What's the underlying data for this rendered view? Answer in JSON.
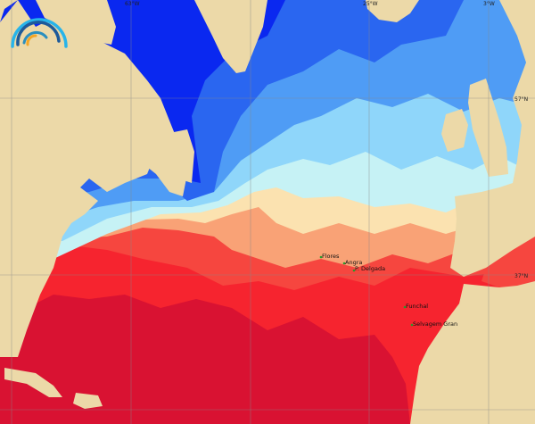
{
  "map": {
    "graticule": {
      "longitudes": [
        "63°W",
        "25°W",
        "3°W"
      ],
      "latitudes": [
        "57°N",
        "37°N"
      ]
    },
    "places": [
      {
        "name": "Flores"
      },
      {
        "name": "Angra"
      },
      {
        "name": "P. Delgada"
      },
      {
        "name": "Funchal"
      },
      {
        "name": "Selvagem Gran"
      }
    ],
    "logo_icon": "rainbow-arc-logo",
    "colors": {
      "land": "#ecd9a8",
      "deep_cold": "#0a28f0",
      "cold": "#2a66f0",
      "cool": "#4f9cf5",
      "mild": "#8fd6fa",
      "pale": "#c6f2f5",
      "neutral": "#fbe2b0",
      "warm": "#f9a276",
      "hot": "#f6463f",
      "hotter": "#f6242f",
      "hottest": "#d91232"
    }
  }
}
